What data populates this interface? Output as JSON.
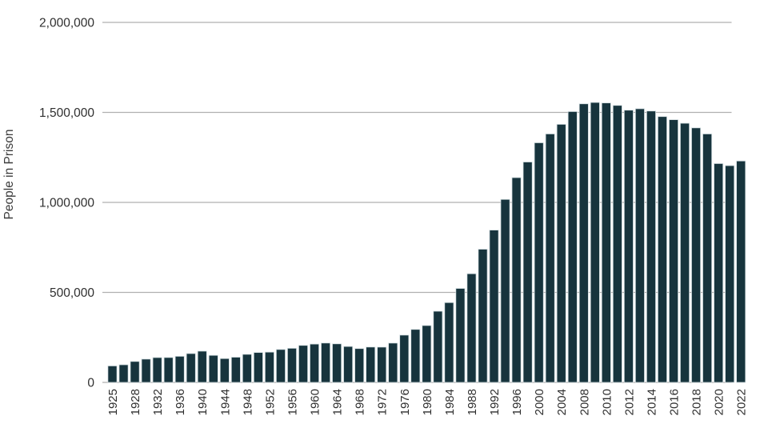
{
  "chart_data": {
    "type": "bar",
    "title": "",
    "xlabel": "",
    "ylabel": "People in Prison",
    "ylim": [
      0,
      2000000
    ],
    "grid": "horizontal",
    "legend": "none",
    "yticks": [
      {
        "value": 0,
        "label": "0"
      },
      {
        "value": 500000,
        "label": "500,000"
      },
      {
        "value": 1000000,
        "label": "1,000,000"
      },
      {
        "value": 1500000,
        "label": "1,500,000"
      },
      {
        "value": 2000000,
        "label": "2,000,000"
      }
    ],
    "labeled_years": [
      1925,
      1928,
      1932,
      1936,
      1940,
      1944,
      1948,
      1952,
      1956,
      1960,
      1964,
      1968,
      1972,
      1976,
      1980,
      1984,
      1988,
      1992,
      1996,
      2000,
      2004,
      2008,
      2010,
      2012,
      2014,
      2016,
      2018,
      2020,
      2022
    ],
    "categories": [
      1925,
      1926,
      1928,
      1930,
      1932,
      1934,
      1936,
      1938,
      1940,
      1942,
      1944,
      1946,
      1948,
      1950,
      1952,
      1954,
      1956,
      1958,
      1960,
      1962,
      1964,
      1966,
      1968,
      1970,
      1972,
      1974,
      1976,
      1978,
      1980,
      1982,
      1984,
      1986,
      1988,
      1990,
      1992,
      1994,
      1996,
      1998,
      2000,
      2002,
      2004,
      2006,
      2008,
      2009,
      2010,
      2011,
      2012,
      2013,
      2014,
      2015,
      2016,
      2017,
      2018,
      2019,
      2020,
      2021,
      2022
    ],
    "values": [
      91669,
      97991,
      116390,
      129453,
      137997,
      138316,
      145038,
      160285,
      173706,
      150384,
      132456,
      140079,
      155977,
      166123,
      168233,
      182901,
      189565,
      205643,
      212953,
      218830,
      214336,
      199654,
      187914,
      196429,
      196092,
      218466,
      262833,
      294396,
      315974,
      395516,
      443398,
      522084,
      603732,
      739980,
      846277,
      1016691,
      1137722,
      1224469,
      1331278,
      1380516,
      1433793,
      1504660,
      1547742,
      1555258,
      1552669,
      1538847,
      1512430,
      1520403,
      1507781,
      1476847,
      1459533,
      1439808,
      1414162,
      1380427,
      1215821,
      1204300,
      1230143
    ],
    "colors": {
      "bar": "#17343d",
      "bar_edge": "#d3dee1",
      "gridline": "#b0b0b0",
      "tick_text": "#2f2f2f",
      "axis_title_text": "#3a3a3a",
      "background": "#ffffff"
    }
  }
}
